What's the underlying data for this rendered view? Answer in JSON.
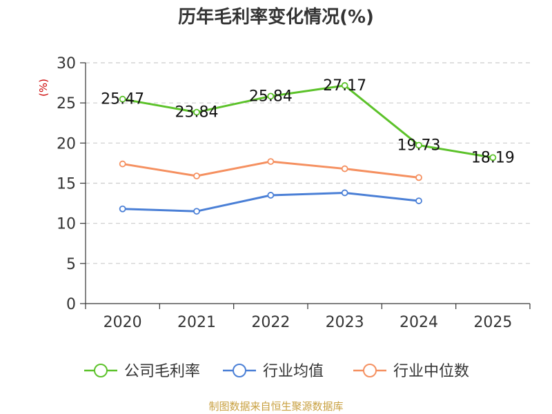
{
  "chart_data": {
    "type": "line",
    "title": "历年毛利率变化情况(%)",
    "ylabel": "(%)",
    "xlabel": "",
    "categories": [
      "2020",
      "2021",
      "2022",
      "2023",
      "2024",
      "2025"
    ],
    "ylim": [
      0,
      30
    ],
    "yticks": [
      "0",
      "5",
      "10",
      "15",
      "20",
      "25",
      "30"
    ],
    "grid": true,
    "legend_position": "bottom",
    "series": [
      {
        "name": "公司毛利率",
        "color": "#5cc22a",
        "values": [
          25.47,
          23.84,
          25.84,
          27.17,
          19.73,
          18.19
        ],
        "labels": [
          "25.47",
          "23.84",
          "25.84",
          "27.17",
          "19.73",
          "18.19"
        ]
      },
      {
        "name": "行业均值",
        "color": "#4a7fd6",
        "values": [
          11.8,
          11.5,
          13.5,
          13.8,
          12.8,
          null
        ]
      },
      {
        "name": "行业中位数",
        "color": "#f59060",
        "values": [
          17.4,
          15.9,
          17.7,
          16.8,
          15.7,
          null
        ]
      }
    ],
    "source": "制图数据来自恒生聚源数据库"
  }
}
